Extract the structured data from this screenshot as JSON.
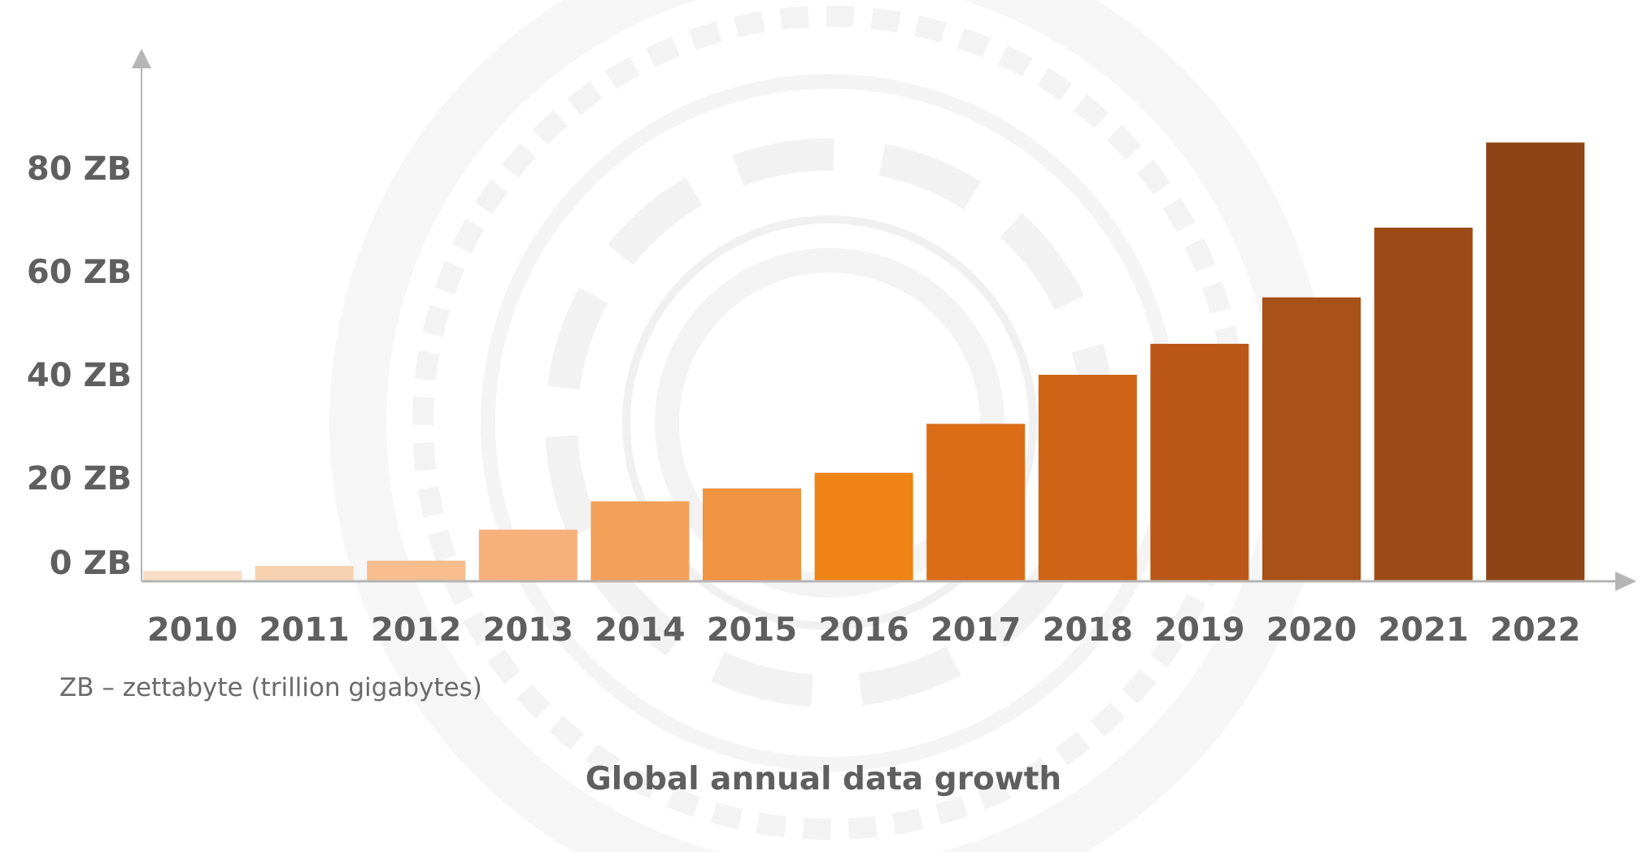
{
  "chart_data": {
    "type": "bar",
    "title": "Global annual data growth",
    "xlabel": "",
    "ylabel": "",
    "categories": [
      "2010",
      "2011",
      "2012",
      "2013",
      "2014",
      "2015",
      "2016",
      "2017",
      "2018",
      "2019",
      "2020",
      "2021",
      "2022"
    ],
    "values": [
      2,
      3,
      4,
      10,
      15.5,
      18,
      21,
      30.5,
      40,
      46,
      55,
      68.5,
      85
    ],
    "y_ticks": [
      {
        "value": 0,
        "label": "0 ZB"
      },
      {
        "value": 20,
        "label": "20 ZB"
      },
      {
        "value": 40,
        "label": "40 ZB"
      },
      {
        "value": 60,
        "label": "60 ZB"
      },
      {
        "value": 80,
        "label": "80 ZB"
      }
    ],
    "ylim": [
      -4,
      94
    ],
    "grid": false,
    "legend": "none",
    "colors": [
      "#f8dcc3",
      "#f7d2b0",
      "#f7bd8e",
      "#f6b07a",
      "#f2a05a",
      "#f19441",
      "#ef8316",
      "#dc6d18",
      "#cf6417",
      "#ba5718",
      "#a85118",
      "#9c4b17",
      "#8e4416"
    ]
  },
  "footnote": "ZB – zettabyte (trillion gigabytes)"
}
